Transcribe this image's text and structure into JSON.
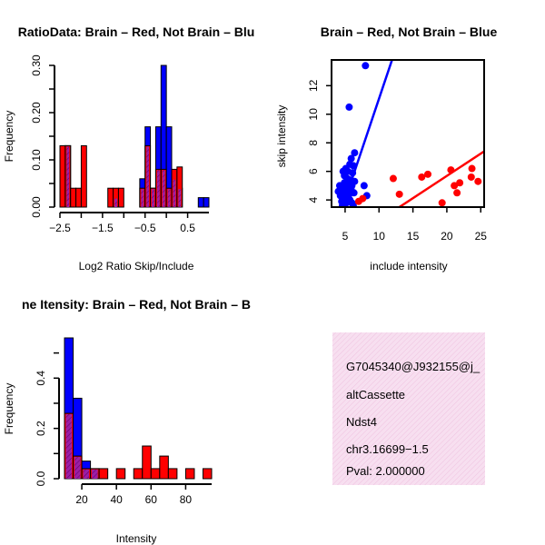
{
  "chart_data": [
    {
      "type": "histogram",
      "title": "RatioData: Brain – Red, Not Brain – Blu",
      "xlabel": "Log2 Ratio Skip/Include",
      "ylabel": "Frequency",
      "xlim": [
        -2.5,
        1.0
      ],
      "ylim": [
        0,
        0.3
      ],
      "xticks": [
        -2.5,
        -1.5,
        -0.5,
        0.5
      ],
      "xtick_labels": [
        "−2.5",
        "−1.5",
        "−0.5",
        "0.5"
      ],
      "xticks_extra_labels": {
        "-2.0": "",
        "-1.0": "",
        "0.0": ""
      },
      "yticks": [
        0.0,
        0.1,
        0.2,
        0.3
      ],
      "ytick_labels": [
        "0.00",
        "0.10",
        "0.20",
        "0.30"
      ],
      "yticks_minor": [
        0.05,
        0.15,
        0.25
      ],
      "ytick_minor_labels": [
        "",
        "",
        ""
      ],
      "bin_width": 0.125,
      "series": [
        {
          "name": "Not Brain",
          "color": "#0000ff",
          "bins": [
            [
              -2.375,
              -2.25,
              0.13
            ],
            [
              -1.25,
              -1.125,
              0.02
            ],
            [
              -0.625,
              -0.5,
              0.06
            ],
            [
              -0.5,
              -0.375,
              0.17
            ],
            [
              -0.375,
              -0.25,
              0.04
            ],
            [
              -0.25,
              -0.125,
              0.17
            ],
            [
              -0.125,
              0.0,
              0.3
            ],
            [
              0.0,
              0.125,
              0.17
            ],
            [
              0.125,
              0.25,
              0.06
            ],
            [
              0.25,
              0.375,
              0.04
            ],
            [
              0.75,
              0.875,
              0.02
            ],
            [
              0.875,
              1.0,
              0.02
            ]
          ]
        },
        {
          "name": "Brain",
          "color": "#ff0000",
          "bins": [
            [
              -2.5,
              -2.375,
              0.13
            ],
            [
              -2.375,
              -2.25,
              0.13
            ],
            [
              -2.25,
              -2.125,
              0.04
            ],
            [
              -2.125,
              -2.0,
              0.04
            ],
            [
              -2.0,
              -1.875,
              0.13
            ],
            [
              -1.375,
              -1.25,
              0.04
            ],
            [
              -1.25,
              -1.125,
              0.04
            ],
            [
              -1.125,
              -1.0,
              0.04
            ],
            [
              -0.625,
              -0.5,
              0.04
            ],
            [
              -0.5,
              -0.375,
              0.13
            ],
            [
              -0.375,
              -0.25,
              0.04
            ],
            [
              -0.25,
              -0.125,
              0.08
            ],
            [
              -0.125,
              0.0,
              0.08
            ],
            [
              0.0,
              0.125,
              0.04
            ],
            [
              0.125,
              0.25,
              0.08
            ],
            [
              0.25,
              0.375,
              0.085
            ]
          ]
        }
      ]
    },
    {
      "type": "scatter",
      "title": "Brain – Red, Not Brain – Blue",
      "xlabel": "include intensity",
      "ylabel": "skip intensity",
      "xlim": [
        3,
        25.5
      ],
      "ylim": [
        3.5,
        13.8
      ],
      "xticks": [
        5,
        10,
        15,
        20,
        25
      ],
      "yticks": [
        4,
        6,
        8,
        10,
        12
      ],
      "series": [
        {
          "name": "Not Brain",
          "color": "#0000ff",
          "points": [
            [
              8.0,
              13.4
            ],
            [
              5.6,
              10.5
            ],
            [
              6.4,
              7.3
            ],
            [
              5.9,
              6.9
            ],
            [
              5.7,
              6.5
            ],
            [
              6.2,
              6.4
            ],
            [
              5.1,
              6.2
            ],
            [
              4.7,
              6.0
            ],
            [
              5.4,
              6.0
            ],
            [
              6.1,
              5.9
            ],
            [
              4.9,
              5.7
            ],
            [
              5.3,
              5.5
            ],
            [
              5.8,
              5.4
            ],
            [
              6.4,
              5.3
            ],
            [
              4.9,
              5.2
            ],
            [
              5.6,
              5.1
            ],
            [
              6.0,
              5.0
            ],
            [
              4.2,
              5.0
            ],
            [
              5.2,
              4.9
            ],
            [
              7.8,
              5.0
            ],
            [
              4.6,
              4.8
            ],
            [
              5.9,
              4.7
            ],
            [
              4.0,
              4.6
            ],
            [
              5.0,
              4.5
            ],
            [
              6.3,
              4.5
            ],
            [
              4.3,
              4.3
            ],
            [
              5.5,
              4.3
            ],
            [
              8.2,
              4.3
            ],
            [
              4.8,
              4.1
            ],
            [
              5.7,
              4.0
            ],
            [
              4.5,
              3.9
            ],
            [
              5.2,
              3.8
            ],
            [
              6.0,
              3.8
            ],
            [
              4.6,
              3.6
            ],
            [
              6.2,
              3.6
            ],
            [
              5.4,
              4.1
            ],
            [
              4.4,
              4.4
            ],
            [
              5.3,
              4.7
            ],
            [
              4.9,
              4.1
            ],
            [
              5.1,
              4.4
            ]
          ]
        },
        {
          "name": "Brain",
          "color": "#ff0000",
          "points": [
            [
              12.1,
              5.5
            ],
            [
              13.0,
              4.4
            ],
            [
              16.3,
              5.6
            ],
            [
              17.2,
              5.8
            ],
            [
              19.3,
              3.8
            ],
            [
              20.6,
              6.1
            ],
            [
              21.1,
              5.0
            ],
            [
              21.5,
              4.5
            ],
            [
              21.9,
              5.2
            ],
            [
              23.6,
              5.6
            ],
            [
              23.7,
              6.2
            ],
            [
              24.6,
              5.3
            ],
            [
              7.0,
              3.9
            ],
            [
              7.6,
              4.1
            ]
          ]
        }
      ],
      "lines": [
        {
          "name": "Not Brain fit",
          "color": "#0000ff",
          "from": [
            3.0,
            1.2
          ],
          "to": [
            12.2,
            14.2
          ]
        },
        {
          "name": "Brain fit",
          "color": "#ff0000",
          "from": [
            11.4,
            3.0
          ],
          "to": [
            25.5,
            7.4
          ]
        }
      ]
    },
    {
      "type": "histogram",
      "title": "ne Itensity: Brain – Red, Not Brain – B",
      "xlabel": "Intensity",
      "ylabel": "Frequency",
      "xlim": [
        10,
        95
      ],
      "ylim": [
        0,
        0.56
      ],
      "xticks": [
        20,
        40,
        60,
        80
      ],
      "yticks": [
        0.0,
        0.2,
        0.4
      ],
      "ytick_labels": [
        "0.0",
        "0.2",
        "0.4"
      ],
      "yticks_minor": [
        0.1,
        0.3,
        0.5
      ],
      "ytick_minor_labels": [
        "",
        "",
        ""
      ],
      "bin_width": 5,
      "series": [
        {
          "name": "Not Brain",
          "color": "#0000ff",
          "bins": [
            [
              10,
              15,
              0.56
            ],
            [
              15,
              20,
              0.32
            ],
            [
              20,
              25,
              0.07
            ],
            [
              25,
              30,
              0.04
            ]
          ]
        },
        {
          "name": "Brain",
          "color": "#ff0000",
          "bins": [
            [
              10,
              15,
              0.26
            ],
            [
              15,
              20,
              0.09
            ],
            [
              20,
              25,
              0.04
            ],
            [
              25,
              30,
              0.04
            ],
            [
              30,
              35,
              0.04
            ],
            [
              40,
              45,
              0.04
            ],
            [
              50,
              55,
              0.04
            ],
            [
              55,
              60,
              0.13
            ],
            [
              60,
              65,
              0.04
            ],
            [
              65,
              70,
              0.09
            ],
            [
              70,
              75,
              0.04
            ],
            [
              80,
              85,
              0.04
            ],
            [
              90,
              95,
              0.04
            ]
          ]
        }
      ]
    }
  ],
  "info_panel": {
    "id": "G7045340@J932155@j_",
    "event_type": "altCassette",
    "gene": "Ndst4",
    "location": "chr3.16699−1.5",
    "pval": "Pval: 2.000000",
    "pval_color": "#8b0000",
    "background_color": "#f6d8ec"
  }
}
